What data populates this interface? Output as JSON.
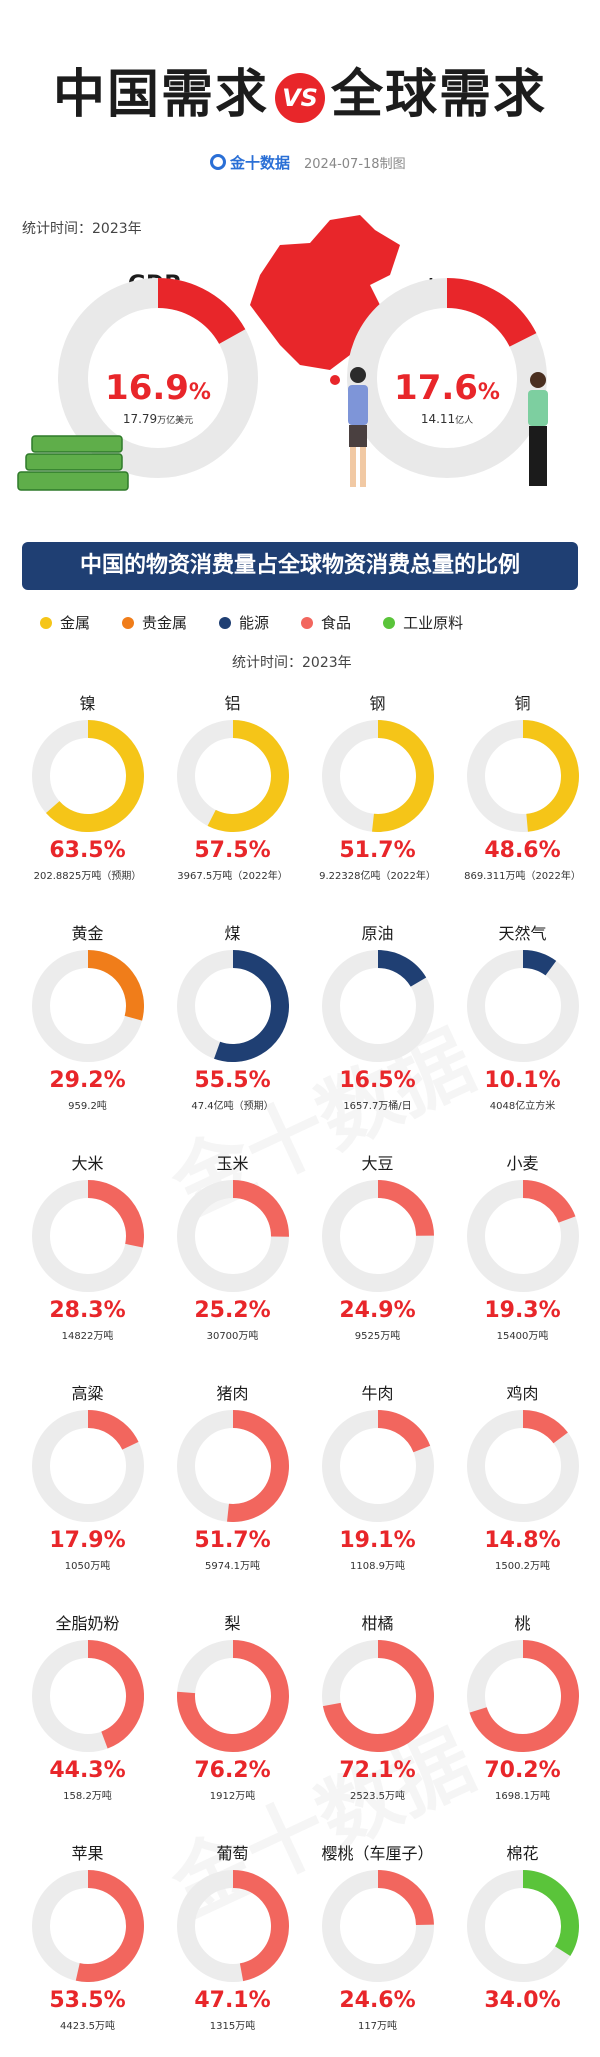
{
  "header": {
    "title_left": "中国需求",
    "vs": "VS",
    "title_right": "全球需求",
    "brand": "金十数据",
    "date": "2024-07-18制图"
  },
  "top_section": {
    "stat_time": "统计时间：2023年",
    "gdp": {
      "label": "GDP",
      "pct_main": "16.9",
      "pct_sign": "%",
      "sub_value": "17.79",
      "sub_unit": "万亿美元"
    },
    "population": {
      "label": "人口",
      "pct_main": "17.6",
      "pct_sign": "%",
      "sub_value": "14.11",
      "sub_unit": "亿人"
    }
  },
  "banner": {
    "text": "中国的物资消费量占全球物资消费总量的比例"
  },
  "legend": [
    {
      "label": "金属",
      "color": "#f5c518"
    },
    {
      "label": "贵金属",
      "color": "#f07d1a"
    },
    {
      "label": "能源",
      "color": "#1f3f73"
    },
    {
      "label": "食品",
      "color": "#f2665e"
    },
    {
      "label": "工业原料",
      "color": "#5ac43a"
    }
  ],
  "stat_time_2": "统计时间：2023年",
  "watermark": "金十数据",
  "chart_data": [
    {
      "type": "pie",
      "subtype": "donut",
      "series": [
        {
          "category": "GDP",
          "value": 16.9,
          "color": "#e8262a"
        },
        {
          "category": "人口",
          "value": 17.6,
          "color": "#e8262a"
        }
      ]
    },
    {
      "type": "pie",
      "subtype": "donut-grid",
      "title": "中国的物资消费量占全球物资消费总量的比例",
      "legend": [
        "金属",
        "贵金属",
        "能源",
        "食品",
        "工业原料"
      ],
      "items": [
        {
          "name": "镍",
          "group": "金属",
          "value": 63.5,
          "pct": "63.5%",
          "note": "202.8825万吨（预期）"
        },
        {
          "name": "铝",
          "group": "金属",
          "value": 57.5,
          "pct": "57.5%",
          "note": "3967.5万吨（2022年）"
        },
        {
          "name": "钢",
          "group": "金属",
          "value": 51.7,
          "pct": "51.7%",
          "note": "9.22328亿吨（2022年）"
        },
        {
          "name": "铜",
          "group": "金属",
          "value": 48.6,
          "pct": "48.6%",
          "note": "869.311万吨（2022年）"
        },
        {
          "name": "黄金",
          "group": "贵金属",
          "value": 29.2,
          "pct": "29.2%",
          "note": "959.2吨"
        },
        {
          "name": "煤",
          "group": "能源",
          "value": 55.5,
          "pct": "55.5%",
          "note": "47.4亿吨（预期）"
        },
        {
          "name": "原油",
          "group": "能源",
          "value": 16.5,
          "pct": "16.5%",
          "note": "1657.7万桶/日"
        },
        {
          "name": "天然气",
          "group": "能源",
          "value": 10.1,
          "pct": "10.1%",
          "note": "4048亿立方米"
        },
        {
          "name": "大米",
          "group": "食品",
          "value": 28.3,
          "pct": "28.3%",
          "note": "14822万吨"
        },
        {
          "name": "玉米",
          "group": "食品",
          "value": 25.2,
          "pct": "25.2%",
          "note": "30700万吨"
        },
        {
          "name": "大豆",
          "group": "食品",
          "value": 24.9,
          "pct": "24.9%",
          "note": "9525万吨"
        },
        {
          "name": "小麦",
          "group": "食品",
          "value": 19.3,
          "pct": "19.3%",
          "note": "15400万吨"
        },
        {
          "name": "高粱",
          "group": "食品",
          "value": 17.9,
          "pct": "17.9%",
          "note": "1050万吨"
        },
        {
          "name": "猪肉",
          "group": "食品",
          "value": 51.7,
          "pct": "51.7%",
          "note": "5974.1万吨"
        },
        {
          "name": "牛肉",
          "group": "食品",
          "value": 19.1,
          "pct": "19.1%",
          "note": "1108.9万吨"
        },
        {
          "name": "鸡肉",
          "group": "食品",
          "value": 14.8,
          "pct": "14.8%",
          "note": "1500.2万吨"
        },
        {
          "name": "全脂奶粉",
          "group": "食品",
          "value": 44.3,
          "pct": "44.3%",
          "note": "158.2万吨"
        },
        {
          "name": "梨",
          "group": "食品",
          "value": 76.2,
          "pct": "76.2%",
          "note": "1912万吨"
        },
        {
          "name": "柑橘",
          "group": "食品",
          "value": 72.1,
          "pct": "72.1%",
          "note": "2523.5万吨"
        },
        {
          "name": "桃",
          "group": "食品",
          "value": 70.2,
          "pct": "70.2%",
          "note": "1698.1万吨"
        },
        {
          "name": "苹果",
          "group": "食品",
          "value": 53.5,
          "pct": "53.5%",
          "note": "4423.5万吨"
        },
        {
          "name": "葡萄",
          "group": "食品",
          "value": 47.1,
          "pct": "47.1%",
          "note": "1315万吨"
        },
        {
          "name": "樱桃（车厘子）",
          "group": "食品",
          "value": 24.6,
          "pct": "24.6%",
          "note": "117万吨"
        },
        {
          "name": "棉花",
          "group": "工业原料",
          "value": 34.0,
          "pct": "34.0%",
          "note": ""
        }
      ]
    }
  ],
  "colors": {
    "accent_red": "#e8262a",
    "metal": "#f5c518",
    "precious": "#f07d1a",
    "energy": "#1f3f73",
    "food": "#f2665e",
    "industrial": "#5ac43a",
    "track": "#ececec"
  }
}
